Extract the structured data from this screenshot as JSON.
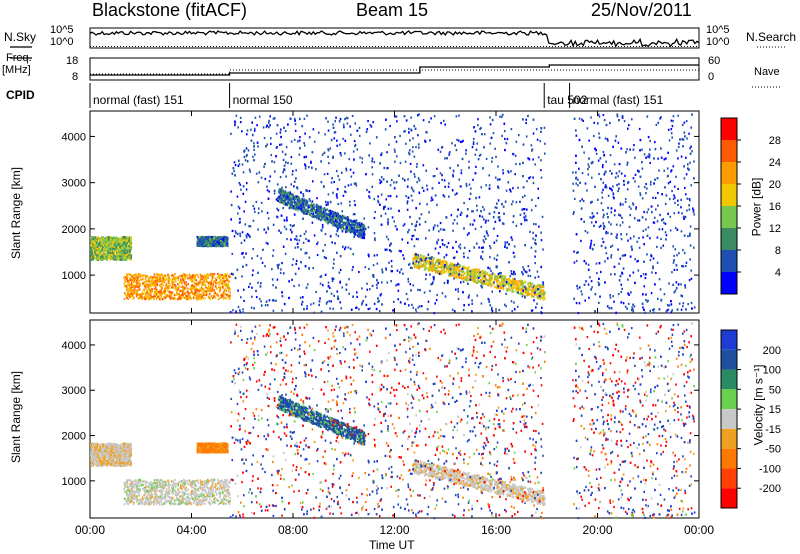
{
  "header": {
    "station": "Blackstone (fitACF)",
    "beam": "Beam 15",
    "date": "25/Nov/2011"
  },
  "side_labels": {
    "nsky": "N.Sky",
    "nsearch": "N.Search",
    "freq": "Freq.",
    "freq_unit": "[MHz]",
    "nave": "Nave",
    "cpid": "CPID"
  },
  "noise_axis": {
    "top_tick": "10^5",
    "bottom_tick": "10^0"
  },
  "freq_axis": {
    "ticks": [
      "18",
      "8"
    ]
  },
  "nave_axis": {
    "ticks": [
      "60",
      "0"
    ]
  },
  "cpid_segments": [
    {
      "label": "normal (fast) 151",
      "start_hour": 0.0,
      "end_hour": 5.5
    },
    {
      "label": "normal 150",
      "start_hour": 5.5,
      "end_hour": 17.9
    },
    {
      "label": "tau 502",
      "start_hour": 17.9,
      "end_hour": 18.9
    },
    {
      "label": "normal (fast) 151",
      "start_hour": 18.9,
      "end_hour": 24.0
    }
  ],
  "x_axis": {
    "label": "Time UT",
    "ticks": [
      "00:00",
      "04:00",
      "08:00",
      "12:00",
      "16:00",
      "20:00",
      "00:00"
    ]
  },
  "power_panel": {
    "ylabel": "Slant Range [km]",
    "yticks": [
      "4000",
      "3000",
      "2000",
      "1000"
    ],
    "cbar_label": "Power [dB]",
    "cbar_ticks": [
      "28",
      "24",
      "20",
      "16",
      "12",
      "8",
      "4"
    ],
    "cbar_colors": [
      "#ff0000",
      "#ff5a00",
      "#ff9c00",
      "#f2c800",
      "#78c850",
      "#3a8a64",
      "#1e50b4",
      "#0000ff"
    ]
  },
  "velocity_panel": {
    "ylabel": "Slant Range [km]",
    "yticks": [
      "4000",
      "3000",
      "2000",
      "1000"
    ],
    "cbar_label": "Velocity [m s⁻¹]",
    "cbar_ticks": [
      "200",
      "100",
      "50",
      "15",
      "-15",
      "-50",
      "-100",
      "-200"
    ],
    "cbar_colors": [
      "#1e3cd2",
      "#1e50a0",
      "#2a8a64",
      "#6ad050",
      "#c8c8c8",
      "#f0a020",
      "#ff7800",
      "#ff4000",
      "#ff0000"
    ]
  },
  "chart_data": {
    "type": "heatmap",
    "title": "Blackstone (fitACF)   Beam 15   25/Nov/2011",
    "xlabel": "Time UT",
    "ylabel": "Slant Range [km]",
    "xlim_hours": [
      0,
      24
    ],
    "ylim_km": [
      180,
      4550
    ],
    "panels": [
      {
        "name": "Power [dB]",
        "zlim": [
          0,
          30
        ]
      },
      {
        "name": "Velocity [m s-1]",
        "zlim": [
          -250,
          250
        ]
      }
    ],
    "frequency_mhz_steps": [
      {
        "start_hour": 0.0,
        "end_hour": 5.5,
        "value": 10.5
      },
      {
        "start_hour": 5.5,
        "end_hour": 13.0,
        "value": 11.5
      },
      {
        "start_hour": 13.0,
        "end_hour": 18.1,
        "value": 14.5
      },
      {
        "start_hour": 18.1,
        "end_hour": 24.0,
        "value": 15.5
      }
    ],
    "scatter_regions": [
      {
        "t0": 0.0,
        "t1": 1.6,
        "r0": 1350,
        "r1": 1850,
        "feature": "E-region band",
        "power_db": 14,
        "velocity": -10
      },
      {
        "t0": 1.3,
        "t1": 5.5,
        "r0": 500,
        "r1": 1050,
        "feature": "strong near-range band",
        "power_db": 22,
        "velocity": 0
      },
      {
        "t0": 4.2,
        "t1": 5.4,
        "r0": 1650,
        "r1": 1850,
        "feature": "patch",
        "power_db": 8,
        "velocity": -60
      },
      {
        "t0": 7.4,
        "t1": 10.8,
        "r0": 1900,
        "r1": 2900,
        "feature": "descending band",
        "power_db": 8,
        "velocity": 60
      },
      {
        "t0": 12.7,
        "t1": 17.9,
        "r0": 600,
        "r1": 1500,
        "feature": "descending band",
        "power_db": 18,
        "velocity": -5
      }
    ]
  }
}
